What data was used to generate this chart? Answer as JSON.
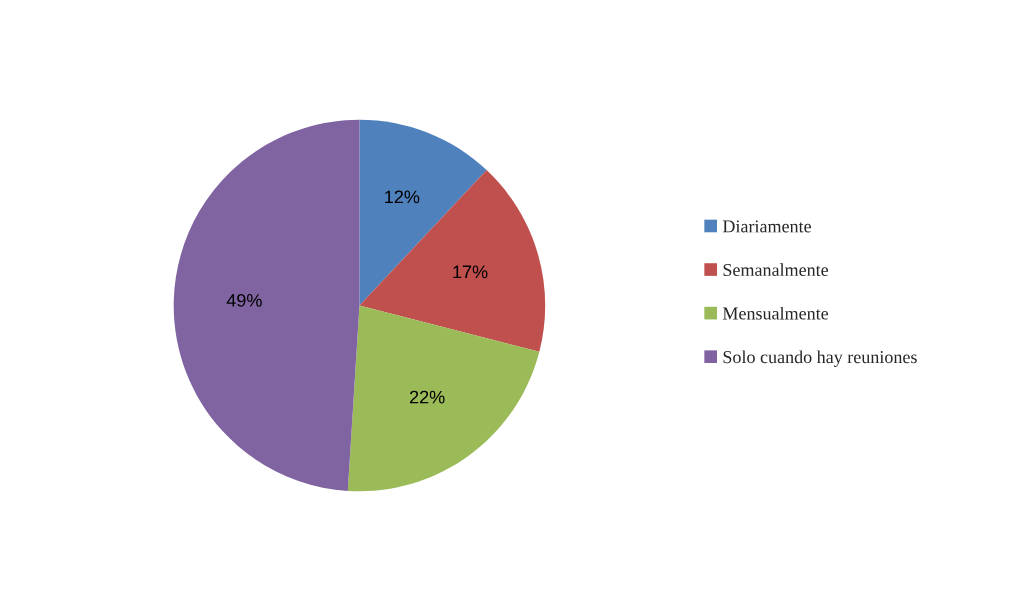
{
  "chart_data": {
    "type": "pie",
    "categories": [
      "Diariamente",
      "Semanalmente",
      "Mensualmente",
      "Solo cuando hay reuniones"
    ],
    "values": [
      12,
      17,
      22,
      49
    ],
    "colors": [
      "#4f81bd",
      "#c0504d",
      "#9bbb59",
      "#8064a2"
    ],
    "value_labels": [
      "12%",
      "17%",
      "22%",
      "49%"
    ],
    "legend": "right"
  }
}
